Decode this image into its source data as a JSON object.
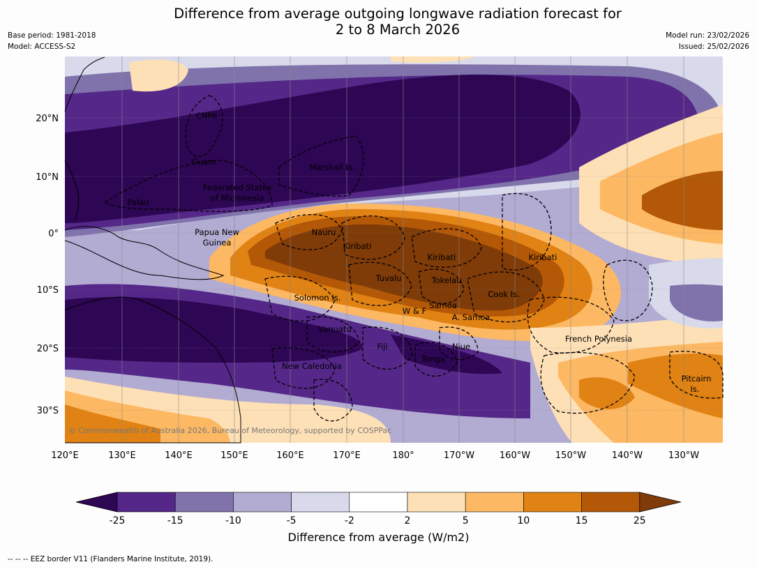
{
  "title": {
    "line1": "Difference from average outgoing longwave radiation forecast for",
    "line2": "2 to 8 March 2026"
  },
  "info_left": {
    "base_period": "Base period: 1981-2018",
    "model": "Model: ACCESS-S2"
  },
  "info_right": {
    "model_run": "Model run: 23/02/2026",
    "issued": "Issued: 25/02/2026"
  },
  "map": {
    "lon_labels": [
      "120°E",
      "130°E",
      "140°E",
      "150°E",
      "160°E",
      "170°E",
      "180°",
      "170°W",
      "160°W",
      "150°W",
      "140°W",
      "130°W"
    ],
    "lat_labels": [
      "20°N",
      "10°N",
      "0°",
      "10°S",
      "20°S",
      "30°S"
    ],
    "copyright": "© Commonwealth of Australia 2026, Bureau of Meteorology, supported by COSPPac",
    "regions": [
      "CNMI",
      "Guam",
      "Marshall Is.",
      "Federated States",
      "of Micronesia",
      "Palau",
      "Papua New",
      "Guinea",
      "Nauru",
      "Kiribati",
      "Kiribati",
      "Kiribati",
      "Tuvalu",
      "Tokelau",
      "Solomon Is.",
      "Samoa",
      "W & F",
      "A. Samoa",
      "Cook Is.",
      "Vanuatu",
      "Fiji",
      "Niue",
      "Tonga",
      "New Caledonia",
      "French Polynesia",
      "Pitcairn",
      "Is."
    ]
  },
  "colorbar": {
    "title": "Difference from average (W/m2)",
    "ticks": [
      "-25",
      "-15",
      "-10",
      "-5",
      "-2",
      "2",
      "5",
      "10",
      "15",
      "25"
    ],
    "colors": [
      "#2d0654",
      "#542788",
      "#8073ac",
      "#b2abd2",
      "#d8daeb",
      "#ffffff",
      "#fee0b6",
      "#fdb863",
      "#e08214",
      "#b35806",
      "#7f3b08"
    ]
  },
  "footnote": "--  --  -- EEZ border V11 (Flanders Marine Institute, 2019)."
}
